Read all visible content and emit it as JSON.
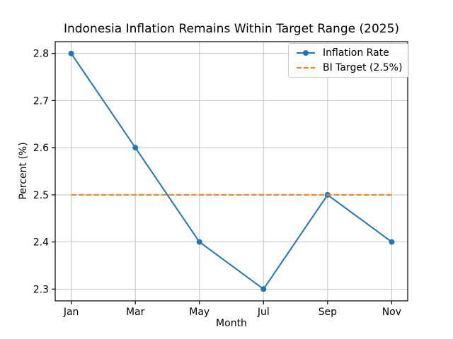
{
  "chart_data": {
    "type": "line",
    "title": "Indonesia Inflation Remains Within Target Range (2025)",
    "xlabel": "Month",
    "ylabel": "Percent (%)",
    "categories": [
      "Jan",
      "Mar",
      "May",
      "Jul",
      "Sep",
      "Nov"
    ],
    "series": [
      {
        "name": "Inflation Rate",
        "color": "#1f77b4",
        "line_style": "solid",
        "marker": "circle",
        "values": [
          2.8,
          2.6,
          2.4,
          2.3,
          2.5,
          2.4
        ]
      },
      {
        "name": "BI Target (2.5%)",
        "color": "#ff7f0e",
        "line_style": "dashed",
        "marker": "none",
        "values": [
          2.5,
          2.5,
          2.5,
          2.5,
          2.5,
          2.5
        ]
      }
    ],
    "yticks": [
      "2.3",
      "2.4",
      "2.5",
      "2.6",
      "2.7",
      "2.8"
    ],
    "ylim": [
      2.275,
      2.825
    ],
    "grid": true,
    "grid_color": "#c4c4c4",
    "axes_color": "#000000",
    "legend_position": "upper right",
    "background_color": "#ffffff"
  }
}
